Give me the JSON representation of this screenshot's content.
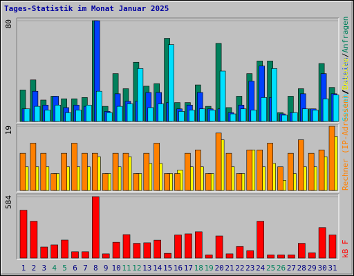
{
  "chart_data": [
    {
      "type": "bar",
      "title": "Tages-Statistik im Monat Januar 2025",
      "categories": [
        "1",
        "2",
        "3",
        "4",
        "5",
        "6",
        "7",
        "8",
        "9",
        "10",
        "11",
        "12",
        "13",
        "14",
        "15",
        "16",
        "17",
        "18",
        "19",
        "20",
        "21",
        "22",
        "23",
        "24",
        "25",
        "26",
        "27",
        "28",
        "29",
        "30",
        "31"
      ],
      "weekend": [
        3,
        4,
        10,
        11,
        17,
        18,
        24,
        25
      ],
      "weekend_color": "#00805c",
      "category_color": "#000080",
      "legend_separator": "/",
      "ylim": [
        0,
        80
      ],
      "yticks": [
        80
      ],
      "grid": true,
      "series": [
        {
          "name": "Seiten",
          "color": "#00e0ff",
          "values": [
            10,
            12,
            9,
            13,
            7,
            9,
            13,
            24,
            7,
            12,
            14,
            42,
            11,
            14,
            61,
            8,
            9,
            10,
            9,
            40,
            6,
            10,
            9,
            19,
            42,
            5,
            7,
            10,
            9,
            18,
            21
          ]
        },
        {
          "name": "Dateien",
          "color": "#0040ff",
          "values": [
            10,
            24,
            13,
            20,
            11,
            13,
            12,
            80,
            8,
            22,
            16,
            16,
            23,
            23,
            15,
            10,
            13,
            23,
            10,
            10,
            7,
            13,
            32,
            44,
            19,
            6,
            7,
            22,
            10,
            38,
            22
          ]
        },
        {
          "name": "Anfragen",
          "color": "#00805c",
          "values": [
            25,
            33,
            17,
            20,
            18,
            18,
            19,
            80,
            12,
            38,
            26,
            47,
            28,
            30,
            66,
            15,
            15,
            29,
            12,
            62,
            11,
            20,
            38,
            48,
            48,
            7,
            20,
            26,
            10,
            46,
            27
          ]
        }
      ]
    },
    {
      "type": "bar",
      "ylim": [
        0,
        19
      ],
      "yticks": [
        19
      ],
      "grid": true,
      "series": [
        {
          "name": "Rechner (IP-Adressen)",
          "color": "#ff8000",
          "values": [
            11,
            14,
            11,
            5,
            11,
            14,
            11,
            11,
            5,
            11,
            11,
            5,
            11,
            14,
            5,
            5,
            11,
            12,
            5,
            17,
            11,
            5,
            12,
            12,
            14,
            7,
            11,
            15,
            11,
            12,
            19
          ]
        },
        {
          "name": "Besuche",
          "color": "#ffff00",
          "values": [
            7,
            7,
            7,
            5,
            7,
            7,
            7,
            10,
            5,
            7,
            10,
            5,
            8,
            8,
            5,
            6,
            7,
            7,
            5,
            15,
            7,
            5,
            12,
            7,
            8,
            3,
            5,
            7,
            7,
            10,
            16
          ]
        }
      ]
    },
    {
      "type": "bar",
      "ylim": [
        0,
        584
      ],
      "yticks": [
        584
      ],
      "grid": true,
      "series": [
        {
          "name": "kB F",
          "color": "#ff0000",
          "values": [
            455,
            350,
            105,
            125,
            171,
            60,
            60,
            584,
            40,
            150,
            223,
            140,
            145,
            170,
            45,
            220,
            230,
            250,
            30,
            210,
            40,
            110,
            70,
            350,
            30,
            30,
            30,
            140,
            50,
            290,
            220
          ]
        }
      ]
    }
  ]
}
